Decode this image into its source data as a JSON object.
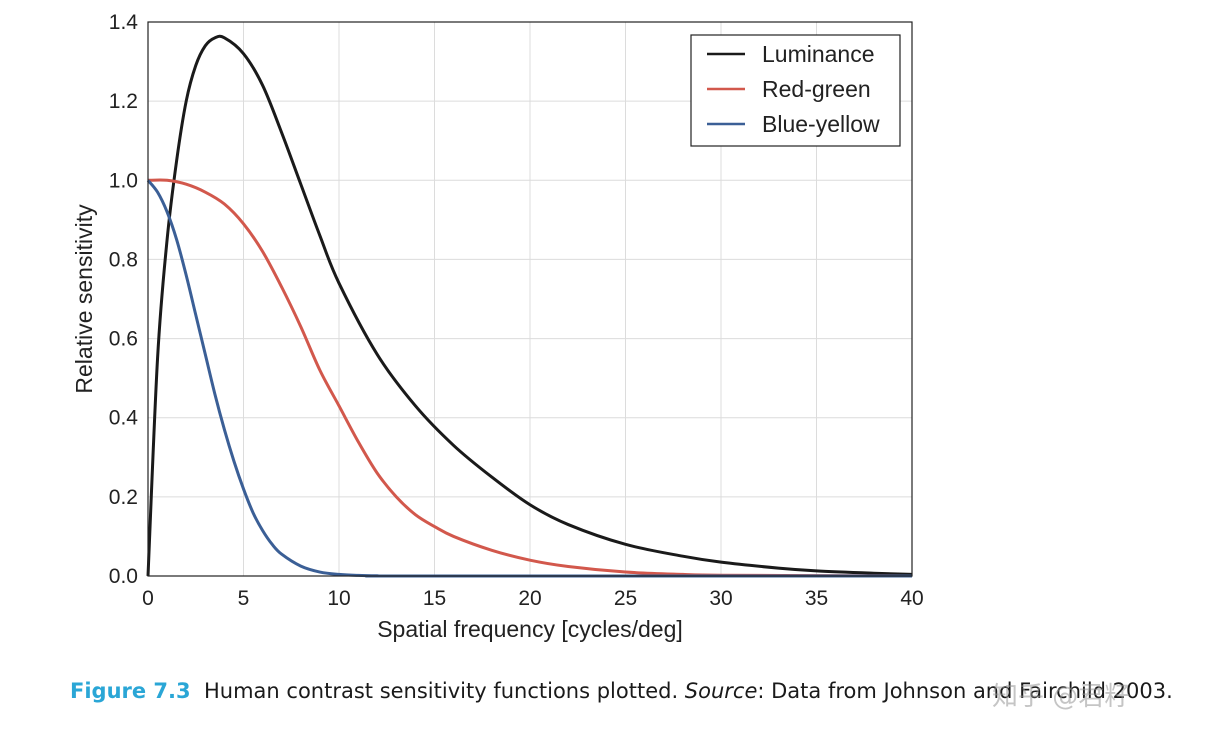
{
  "chart_data": {
    "type": "line",
    "xlabel": "Spatial frequency [cycles/deg]",
    "ylabel": "Relative sensitivity",
    "xlim": [
      0,
      40
    ],
    "ylim": [
      0,
      1.4
    ],
    "xticks": [
      "0",
      "5",
      "10",
      "15",
      "20",
      "25",
      "30",
      "35",
      "40"
    ],
    "yticks": [
      "0.0",
      "0.2",
      "0.4",
      "0.6",
      "0.8",
      "1.0",
      "1.2",
      "1.4"
    ],
    "grid": true,
    "legend_position": "top-right",
    "series": [
      {
        "name": "Luminance",
        "color": "#1a1a1a",
        "x": [
          0,
          0.5,
          1,
          1.5,
          2,
          2.5,
          3,
          3.5,
          4,
          5,
          6,
          7,
          8,
          9,
          10,
          12,
          14,
          16,
          18,
          20,
          22,
          25,
          28,
          30,
          33,
          35,
          38,
          40
        ],
        "y": [
          0,
          0.55,
          0.85,
          1.05,
          1.2,
          1.29,
          1.34,
          1.36,
          1.36,
          1.32,
          1.24,
          1.12,
          0.99,
          0.86,
          0.74,
          0.56,
          0.43,
          0.33,
          0.25,
          0.18,
          0.13,
          0.08,
          0.05,
          0.035,
          0.02,
          0.013,
          0.007,
          0.004
        ]
      },
      {
        "name": "Red-green",
        "color": "#d2584c",
        "x": [
          0,
          1,
          2,
          3,
          4,
          5,
          6,
          7,
          8,
          9,
          10,
          11,
          12,
          13,
          14,
          15,
          16,
          18,
          20,
          22,
          25,
          28,
          30,
          35,
          40
        ],
        "y": [
          1.0,
          1.0,
          0.99,
          0.97,
          0.94,
          0.89,
          0.82,
          0.73,
          0.63,
          0.52,
          0.43,
          0.34,
          0.26,
          0.2,
          0.155,
          0.125,
          0.1,
          0.065,
          0.04,
          0.024,
          0.01,
          0.004,
          0.002,
          0.001,
          0
        ]
      },
      {
        "name": "Blue-yellow",
        "color": "#3b5f96",
        "x": [
          0,
          0.5,
          1,
          1.5,
          2,
          2.5,
          3,
          3.5,
          4,
          4.5,
          5,
          5.5,
          6,
          6.5,
          7,
          8,
          9,
          10,
          11,
          12,
          14,
          40
        ],
        "y": [
          1.0,
          0.97,
          0.92,
          0.85,
          0.76,
          0.66,
          0.56,
          0.46,
          0.37,
          0.29,
          0.22,
          0.16,
          0.115,
          0.08,
          0.055,
          0.025,
          0.01,
          0.004,
          0.0015,
          0.0005,
          0,
          0
        ]
      }
    ]
  },
  "caption": {
    "figure_number": "Figure 7.3",
    "text_before_source": "Human contrast sensitivity functions plotted. ",
    "source_label": "Source",
    "text_after_source": ": Data from Johnson and Fairchild 2003."
  },
  "watermark": {
    "text": "知乎 @君籽"
  }
}
